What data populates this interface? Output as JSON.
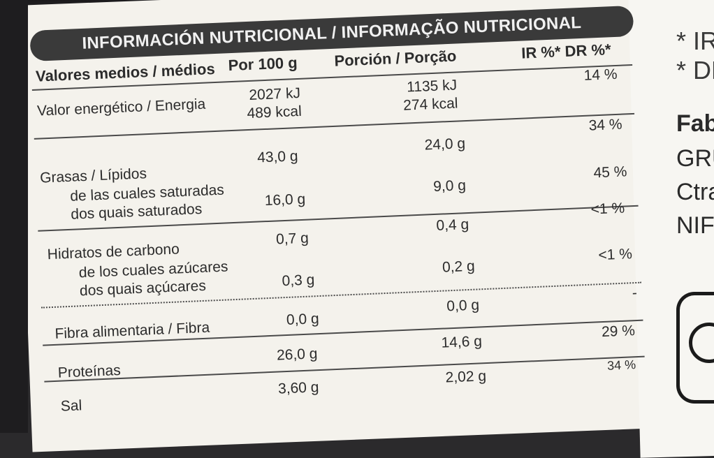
{
  "title": "INFORMACIÓN NUTRICIONAL / INFORMAÇÃO NUTRICIONAL",
  "headers": {
    "label": "Valores medios / médios",
    "per100": "Por 100 g",
    "portion": "Porción / Porção",
    "ir": "IR %* DR %*"
  },
  "rows": [
    {
      "l1": "Valor energético / Energia",
      "p100a": "2027 kJ",
      "p100b": "489 kcal",
      "pora": "1135 kJ",
      "porb": "274 kcal",
      "ir": "14 %"
    },
    {
      "l1": "Grasas / Lípidos",
      "p100a": "43,0 g",
      "pora": "24,0 g",
      "ir": "34 %"
    },
    {
      "l1": "de las cuales saturadas",
      "l2": "dos quais saturados",
      "p100a": "16,0 g",
      "pora": "9,0 g",
      "ir": "45 %"
    },
    {
      "l1": "Hidratos de carbono",
      "p100a": "0,7 g",
      "pora": "0,4 g",
      "ir": "<1 %"
    },
    {
      "l1": "de los cuales azúcares",
      "l2": "dos quais açúcares",
      "p100a": "0,3 g",
      "pora": "0,2 g",
      "ir": "<1 %"
    },
    {
      "l1": "Fibra alimentaria / Fibra",
      "p100a": "0,0 g",
      "pora": "0,0 g",
      "ir": "-"
    },
    {
      "l1": "Proteínas",
      "p100a": "26,0 g",
      "pora": "14,6 g",
      "ir": "29 %"
    },
    {
      "l1": "Sal",
      "p100a": "3,60 g",
      "pora": "2,02 g",
      "ir": "34 %"
    }
  ],
  "side": {
    "t1": "* IR",
    "t2": "* DR",
    "t3": "Fab",
    "t4": "GRU",
    "t5": "Ctra",
    "t6": "NIF"
  }
}
